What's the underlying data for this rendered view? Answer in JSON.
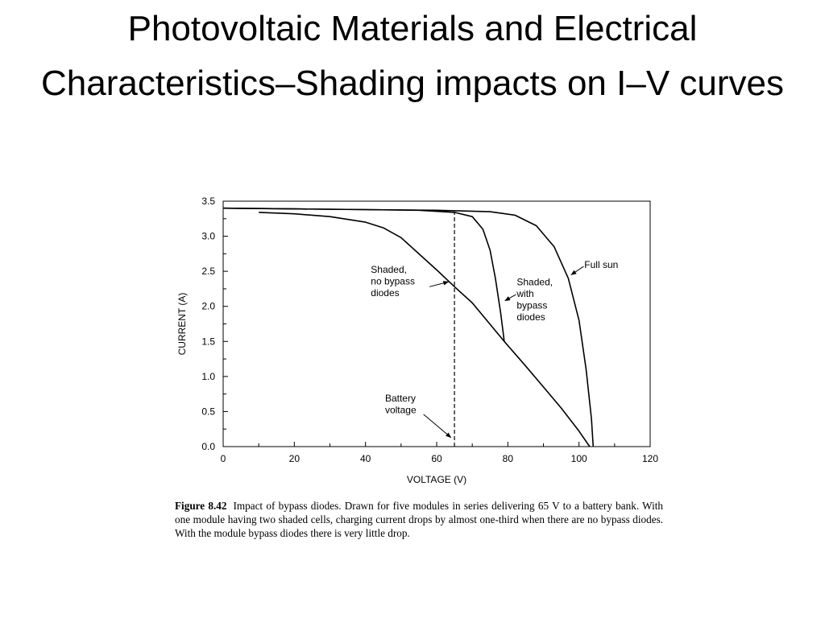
{
  "slide": {
    "title": "Photovoltaic Materials and Electrical Characteristics–Shading impacts on I–V curves"
  },
  "figure": {
    "label": "Figure 8.42",
    "caption": "Impact of bypass diodes. Drawn for five modules in series delivering 65 V to a battery bank. With one module having two shaded cells, charging current drops by almost one-third when there are no bypass diodes. With the module bypass diodes there is very little drop."
  },
  "chart_data": {
    "type": "line",
    "title": "",
    "xlabel": "VOLTAGE (V)",
    "ylabel": "CURRENT (A)",
    "xlim": [
      0,
      120
    ],
    "ylim": [
      0,
      3.5
    ],
    "xticks": [
      0,
      20,
      40,
      60,
      80,
      100,
      120
    ],
    "yticks": [
      0.0,
      0.5,
      1.0,
      1.5,
      2.0,
      2.5,
      3.0,
      3.5
    ],
    "ytick_labels": [
      "0.0",
      "0.5",
      "1.0",
      "1.5",
      "2.0",
      "2.5",
      "3.0",
      "3.5"
    ],
    "grid": false,
    "series": [
      {
        "name": "Full sun",
        "x": [
          0,
          20,
          40,
          60,
          75,
          82,
          88,
          93,
          97,
          100,
          102,
          103.5,
          104
        ],
        "y": [
          3.4,
          3.39,
          3.38,
          3.37,
          3.35,
          3.3,
          3.15,
          2.85,
          2.4,
          1.8,
          1.1,
          0.4,
          0.0
        ]
      },
      {
        "name": "Shaded, with bypass diodes",
        "x": [
          0,
          20,
          40,
          55,
          65,
          70,
          73,
          75,
          76.5,
          78,
          79
        ],
        "y": [
          3.4,
          3.39,
          3.38,
          3.37,
          3.34,
          3.28,
          3.1,
          2.8,
          2.4,
          1.9,
          1.5
        ]
      },
      {
        "name": "Shaded, no bypass diodes",
        "x": [
          10,
          20,
          30,
          40,
          45,
          50,
          55,
          60,
          65,
          70,
          79,
          85,
          90,
          95,
          100,
          103
        ],
        "y": [
          3.34,
          3.32,
          3.28,
          3.2,
          3.12,
          2.98,
          2.75,
          2.52,
          2.28,
          2.05,
          1.5,
          1.15,
          0.85,
          0.55,
          0.22,
          0.0
        ]
      }
    ],
    "reference_lines": [
      {
        "name": "Battery voltage",
        "axis": "x",
        "value": 65,
        "style": "dashed"
      }
    ],
    "annotations": [
      {
        "text": "Full sun",
        "lines": [
          "Full sun"
        ]
      },
      {
        "text": "Shaded, with bypass diodes",
        "lines": [
          "Shaded,",
          "with",
          "bypass",
          "diodes"
        ]
      },
      {
        "text": "Shaded, no bypass diodes",
        "lines": [
          "Shaded,",
          "no bypass",
          "diodes"
        ]
      },
      {
        "text": "Battery voltage",
        "lines": [
          "Battery",
          "voltage"
        ]
      }
    ]
  }
}
